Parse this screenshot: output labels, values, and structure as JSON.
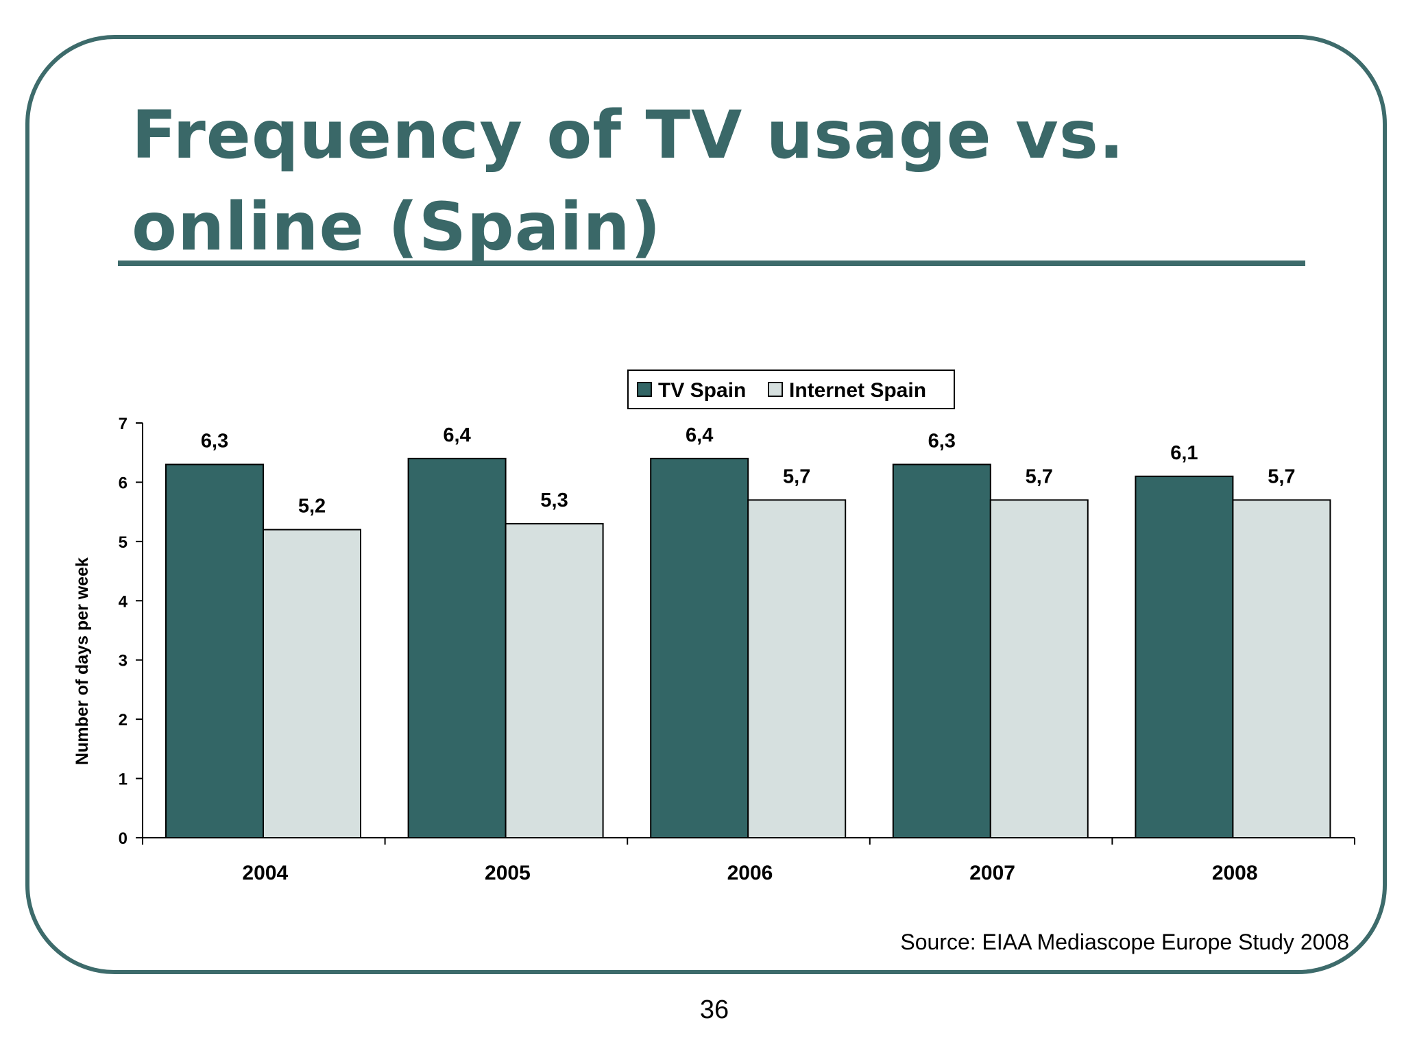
{
  "title": "Frequency of TV usage vs. online (Spain)",
  "source": "Source: EIAA Mediascope Europe Study 2008",
  "page_number": "36",
  "colors": {
    "accent": "#3d6b6b",
    "tv": "#336666",
    "internet": "#d6e0df"
  },
  "chart_data": {
    "type": "bar",
    "categories": [
      "2004",
      "2005",
      "2006",
      "2007",
      "2008"
    ],
    "series": [
      {
        "name": "TV Spain",
        "values": [
          6.3,
          6.4,
          6.4,
          6.3,
          6.1
        ],
        "labels": [
          "6,3",
          "6,4",
          "6,4",
          "6,3",
          "6,1"
        ]
      },
      {
        "name": "Internet Spain",
        "values": [
          5.2,
          5.3,
          5.7,
          5.7,
          5.7
        ],
        "labels": [
          "5,2",
          "5,3",
          "5,7",
          "5,7",
          "5,7"
        ]
      }
    ],
    "ylabel": "Number of days per week",
    "ylim": [
      0,
      7
    ],
    "yticks": [
      "0",
      "1",
      "2",
      "3",
      "4",
      "5",
      "6",
      "7"
    ],
    "legend": "top"
  }
}
